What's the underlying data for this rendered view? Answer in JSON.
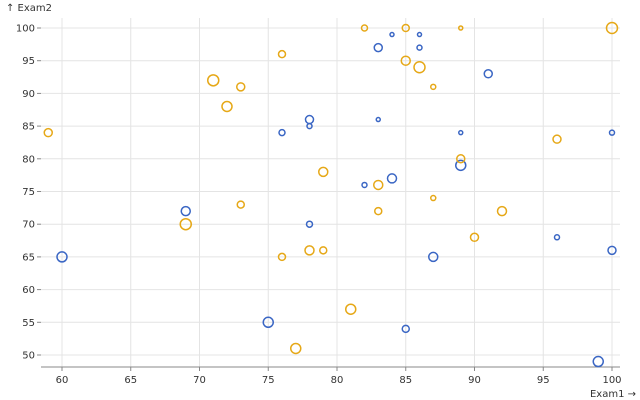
{
  "chart_data": {
    "type": "scatter",
    "xlabel": "Exam1 →",
    "ylabel": "↑ Exam2",
    "xlim": [
      59,
      100
    ],
    "ylim": [
      48,
      101
    ],
    "xticks": [
      60,
      65,
      70,
      75,
      80,
      85,
      90,
      95,
      100
    ],
    "yticks": [
      50,
      55,
      60,
      65,
      70,
      75,
      80,
      85,
      90,
      95,
      100
    ],
    "grid": true,
    "colors": {
      "series_a": "#3a66c4",
      "series_b": "#e6a817"
    },
    "series": [
      {
        "color": "#3a66c4",
        "points": [
          {
            "x": 60,
            "y": 65,
            "size": 5
          },
          {
            "x": 69,
            "y": 72,
            "size": 4.5
          },
          {
            "x": 75,
            "y": 55,
            "size": 5
          },
          {
            "x": 76,
            "y": 84,
            "size": 3
          },
          {
            "x": 78,
            "y": 86,
            "size": 4
          },
          {
            "x": 78,
            "y": 85,
            "size": 2.5
          },
          {
            "x": 78,
            "y": 70,
            "size": 3
          },
          {
            "x": 82,
            "y": 76,
            "size": 2.5
          },
          {
            "x": 83,
            "y": 97,
            "size": 4
          },
          {
            "x": 83,
            "y": 86,
            "size": 2
          },
          {
            "x": 84,
            "y": 99,
            "size": 2
          },
          {
            "x": 84,
            "y": 77,
            "size": 4.5
          },
          {
            "x": 85,
            "y": 54,
            "size": 3.5
          },
          {
            "x": 86,
            "y": 99,
            "size": 2
          },
          {
            "x": 86,
            "y": 97,
            "size": 2.5
          },
          {
            "x": 87,
            "y": 65,
            "size": 4.5
          },
          {
            "x": 89,
            "y": 84,
            "size": 2
          },
          {
            "x": 89,
            "y": 79,
            "size": 5
          },
          {
            "x": 91,
            "y": 93,
            "size": 4
          },
          {
            "x": 96,
            "y": 68,
            "size": 2.5
          },
          {
            "x": 99,
            "y": 49,
            "size": 5
          },
          {
            "x": 100,
            "y": 84,
            "size": 2.5
          },
          {
            "x": 100,
            "y": 66,
            "size": 4
          }
        ]
      },
      {
        "color": "#e6a817",
        "points": [
          {
            "x": 59,
            "y": 84,
            "size": 4
          },
          {
            "x": 69,
            "y": 70,
            "size": 5.5
          },
          {
            "x": 71,
            "y": 92,
            "size": 5.5
          },
          {
            "x": 72,
            "y": 88,
            "size": 5
          },
          {
            "x": 73,
            "y": 91,
            "size": 4
          },
          {
            "x": 73,
            "y": 73,
            "size": 3.5
          },
          {
            "x": 76,
            "y": 96,
            "size": 3.5
          },
          {
            "x": 76,
            "y": 65,
            "size": 3.5
          },
          {
            "x": 77,
            "y": 51,
            "size": 5
          },
          {
            "x": 78,
            "y": 66,
            "size": 4.5
          },
          {
            "x": 79,
            "y": 78,
            "size": 4.5
          },
          {
            "x": 79,
            "y": 66,
            "size": 3.5
          },
          {
            "x": 81,
            "y": 57,
            "size": 5
          },
          {
            "x": 82,
            "y": 100,
            "size": 3
          },
          {
            "x": 83,
            "y": 76,
            "size": 4.5
          },
          {
            "x": 83,
            "y": 72,
            "size": 3.5
          },
          {
            "x": 85,
            "y": 100,
            "size": 3.5
          },
          {
            "x": 85,
            "y": 95,
            "size": 4.5
          },
          {
            "x": 86,
            "y": 94,
            "size": 5.5
          },
          {
            "x": 87,
            "y": 91,
            "size": 2.5
          },
          {
            "x": 87,
            "y": 74,
            "size": 2.5
          },
          {
            "x": 89,
            "y": 100,
            "size": 2
          },
          {
            "x": 89,
            "y": 80,
            "size": 4
          },
          {
            "x": 90,
            "y": 68,
            "size": 4
          },
          {
            "x": 92,
            "y": 72,
            "size": 4.5
          },
          {
            "x": 96,
            "y": 83,
            "size": 4
          },
          {
            "x": 100,
            "y": 100,
            "size": 5.5
          }
        ]
      }
    ]
  }
}
